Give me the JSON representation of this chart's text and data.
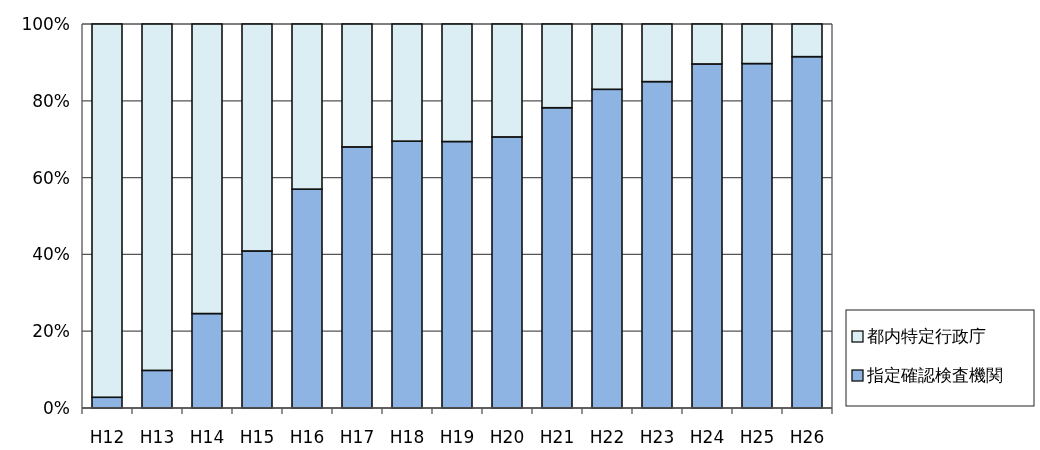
{
  "chart_data": {
    "type": "bar",
    "stacked": true,
    "categories": [
      "H12",
      "H13",
      "H14",
      "H15",
      "H16",
      "H17",
      "H18",
      "H19",
      "H20",
      "H21",
      "H22",
      "H23",
      "H24",
      "H25",
      "H26"
    ],
    "series": [
      {
        "name": "指定確認検査機関",
        "color": "#8db4e2",
        "values": [
          2.8,
          9.8,
          24.6,
          40.9,
          57,
          68,
          69.5,
          69.4,
          70.6,
          78.2,
          83,
          85,
          89.6,
          89.7,
          91.5
        ]
      },
      {
        "name": "都内特定行政庁",
        "color": "#dbeef3",
        "values": [
          97.2,
          90.2,
          75.4,
          59.1,
          43,
          32,
          30.5,
          30.6,
          29.4,
          21.8,
          17,
          15,
          10.4,
          10.3,
          8.5
        ]
      }
    ],
    "ylim": [
      0,
      100
    ],
    "yticks": [
      {
        "value": 0,
        "label": "0%"
      },
      {
        "value": 20,
        "label": "20%"
      },
      {
        "value": 40,
        "label": "40%"
      },
      {
        "value": 60,
        "label": "60%"
      },
      {
        "value": 80,
        "label": "80%"
      },
      {
        "value": 100,
        "label": "100%"
      }
    ],
    "grid": "y",
    "legend": "right"
  }
}
